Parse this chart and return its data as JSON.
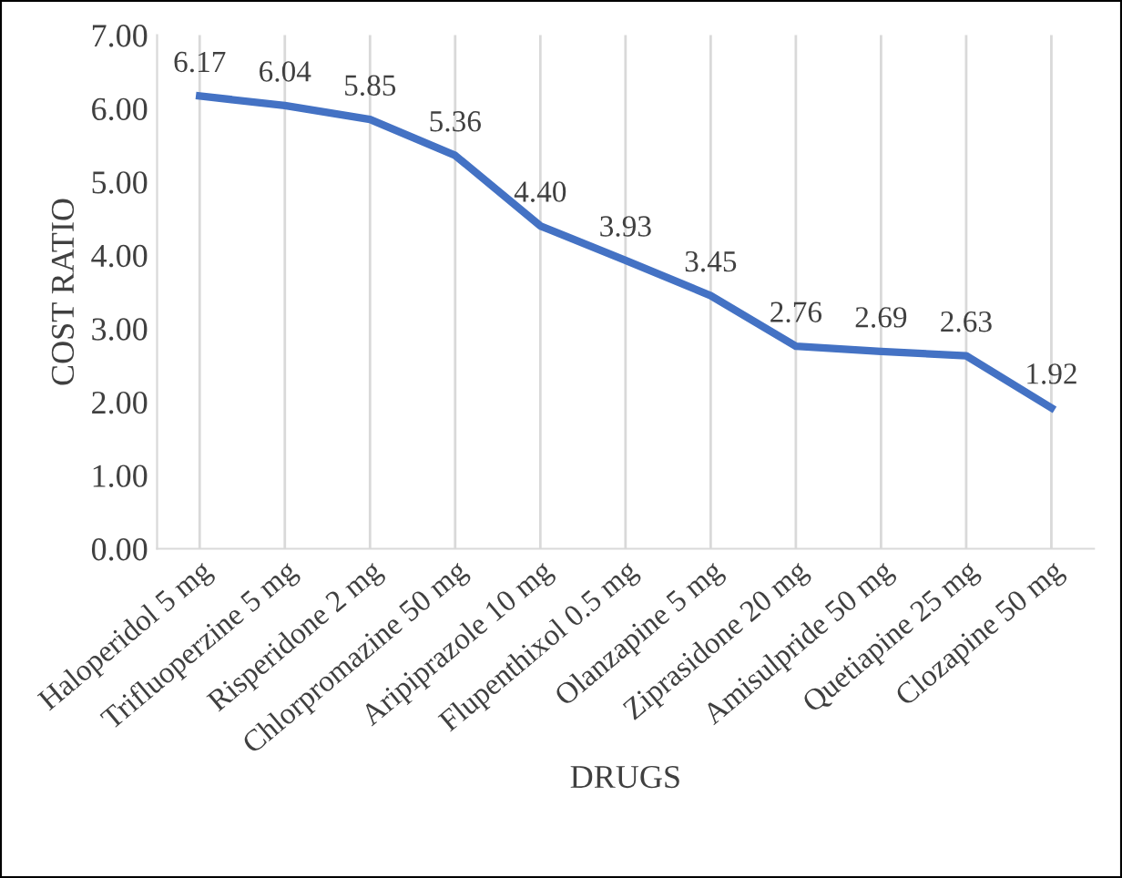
{
  "chart_data": {
    "type": "line",
    "xlabel": "DRUGS",
    "ylabel": "COST RATIO",
    "categories": [
      "Haloperidol 5 mg",
      "Trifluoperzine 5 mg",
      "Risperidone 2 mg",
      "Chlorpromazine 50 mg",
      "Aripiprazole 10 mg",
      "Flupenthixol 0.5 mg",
      "Olanzapine 5 mg",
      "Ziprasidone 20 mg",
      "Amisulpride 50 mg",
      "Quetiapine 25 mg",
      "Clozapine 50 mg"
    ],
    "series": [
      {
        "color": "#4472c4",
        "values": [
          6.17,
          6.04,
          5.85,
          5.36,
          4.4,
          3.93,
          3.45,
          2.76,
          2.69,
          2.63,
          1.92
        ]
      }
    ],
    "value_labels": [
      "6.17",
      "6.04",
      "5.85",
      "5.36",
      "4.40",
      "3.93",
      "3.45",
      "2.76",
      "2.69",
      "2.63",
      "1.92"
    ],
    "ylim": [
      0,
      7
    ],
    "yticks": [
      {
        "value": 0,
        "label": "0.00"
      },
      {
        "value": 1,
        "label": "1.00"
      },
      {
        "value": 2,
        "label": "2.00"
      },
      {
        "value": 3,
        "label": "3.00"
      },
      {
        "value": 4,
        "label": "4.00"
      },
      {
        "value": 5,
        "label": "5.00"
      },
      {
        "value": 6,
        "label": "6.00"
      },
      {
        "value": 7,
        "label": "7.00"
      }
    ],
    "grid": "x",
    "legend": false,
    "marker": "none",
    "line_style": "solid"
  }
}
